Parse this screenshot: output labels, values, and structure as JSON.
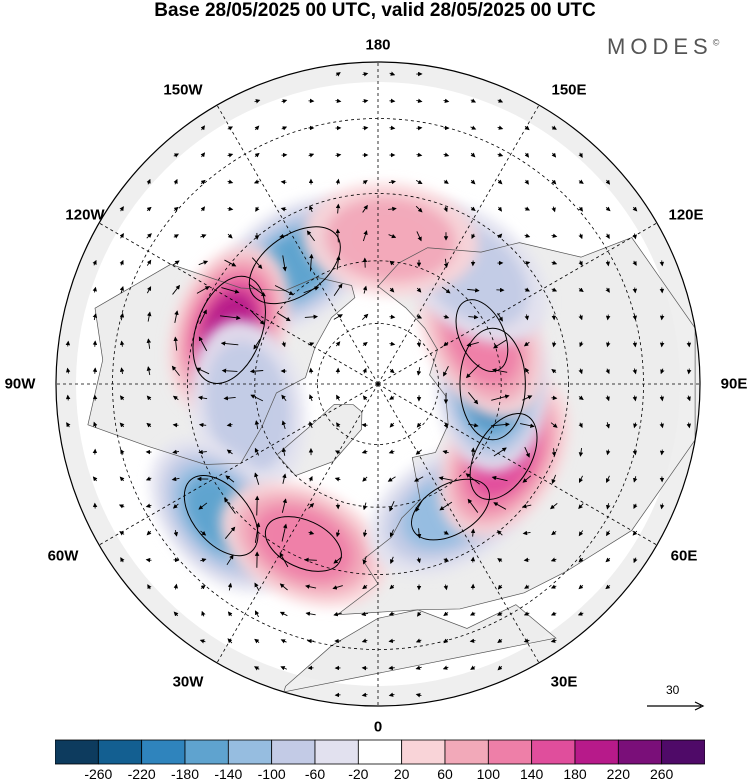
{
  "title": "Base 28/05/2025 00 UTC, valid 28/05/2025 00 UTC",
  "brand": "MODES",
  "brand_mark": "©",
  "longitude_labels": {
    "top": "180",
    "bottom": "0",
    "left": "90W",
    "right": "90E",
    "upper_left_1": "150W",
    "upper_left_2": "120W",
    "upper_right_1": "150E",
    "upper_right_2": "120E",
    "lower_left_1": "60W",
    "lower_left_2": "30W",
    "lower_right_1": "60E",
    "lower_right_2": "30E"
  },
  "reference_vector": {
    "label": "30"
  },
  "colorbar": {
    "ticks": [
      "-260",
      "-220",
      "-180",
      "-140",
      "-100",
      "-60",
      "-20",
      "20",
      "60",
      "100",
      "140",
      "180",
      "220",
      "260"
    ],
    "colors": [
      "#0d3b5e",
      "#135f91",
      "#2f84bd",
      "#5fa3cf",
      "#96bde0",
      "#c3cbe6",
      "#e2e1ef",
      "#ffffff",
      "#f9d4d8",
      "#f2a9b9",
      "#ee7fa8",
      "#e04e9c",
      "#b71a8a",
      "#7a0f79",
      "#4f0a68"
    ]
  },
  "chart_data": {
    "type": "heatmap",
    "projection": "north polar stereographic",
    "levels": [
      -260,
      -220,
      -180,
      -140,
      -100,
      -60,
      -20,
      20,
      60,
      100,
      140,
      180,
      220,
      260
    ],
    "anomaly_centers": [
      {
        "lon": -145,
        "lat": 55,
        "value": -170
      },
      {
        "lon": -110,
        "lat": 52,
        "value": 190
      },
      {
        "lon": -80,
        "lat": 58,
        "value": -70
      },
      {
        "lon": -50,
        "lat": 42,
        "value": -150
      },
      {
        "lon": -25,
        "lat": 48,
        "value": 120
      },
      {
        "lon": 30,
        "lat": 55,
        "value": -130
      },
      {
        "lon": 60,
        "lat": 55,
        "value": 150
      },
      {
        "lon": 90,
        "lat": 62,
        "value": -190
      },
      {
        "lon": 115,
        "lat": 62,
        "value": 110
      },
      {
        "lon": 140,
        "lat": 55,
        "value": -80
      },
      {
        "lon": 175,
        "lat": 55,
        "value": 70
      }
    ]
  }
}
